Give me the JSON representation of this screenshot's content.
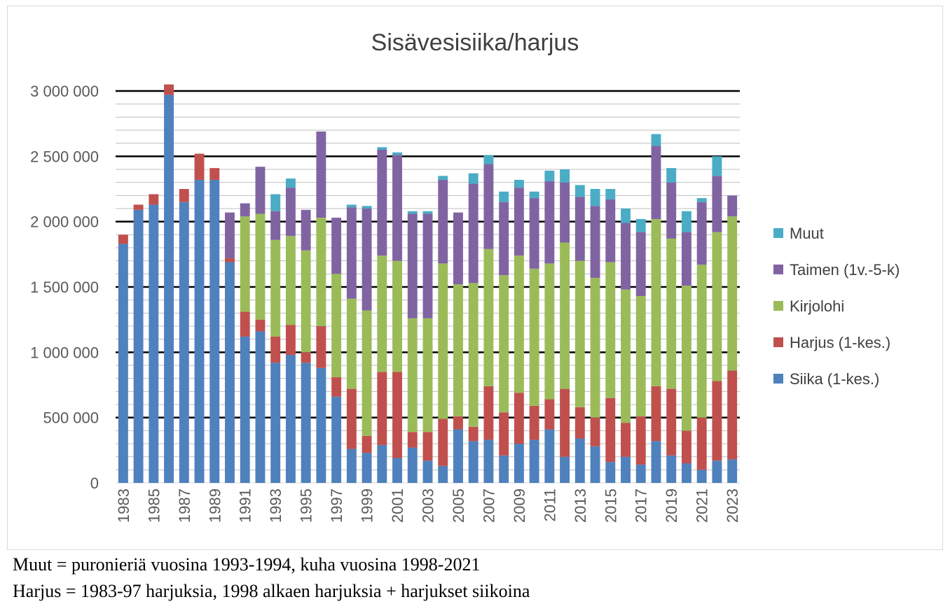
{
  "chart_data": {
    "type": "bar",
    "stacked": true,
    "title": "Sisävesisiika/harjus",
    "xlabel": "",
    "ylabel": "",
    "ylim": [
      0,
      3000000
    ],
    "yticks": [
      0,
      500000,
      1000000,
      1500000,
      2000000,
      2500000,
      3000000
    ],
    "ytick_labels": [
      "0",
      "500 000",
      "1 000 000",
      "1 500 000",
      "2 000 000",
      "2 500 000",
      "3 000 000"
    ],
    "grid": true,
    "legend_position": "right",
    "categories": [
      "1983",
      "1984",
      "1985",
      "1986",
      "1987",
      "1988",
      "1989",
      "1990",
      "1991",
      "1992",
      "1993",
      "1994",
      "1995",
      "1996",
      "1997",
      "1998",
      "1999",
      "2000",
      "2001",
      "2002",
      "2003",
      "2004",
      "2005",
      "2006",
      "2007",
      "2008",
      "2009",
      "2010",
      "2011",
      "2012",
      "2013",
      "2014",
      "2015",
      "2016",
      "2017",
      "2018",
      "2019",
      "2020",
      "2021",
      "2022",
      "2023"
    ],
    "xtick_labels": [
      "1983",
      "",
      "1985",
      "",
      "1987",
      "",
      "1989",
      "",
      "1991",
      "",
      "1993",
      "",
      "1995",
      "",
      "1997",
      "",
      "1999",
      "",
      "2001",
      "",
      "2003",
      "",
      "2005",
      "",
      "2007",
      "",
      "2009",
      "",
      "2011",
      "",
      "2013",
      "",
      "2015",
      "",
      "2017",
      "",
      "2019",
      "",
      "2021",
      "",
      "2023"
    ],
    "series": [
      {
        "name": "Siika (1-kes.)",
        "color": "#4f81bd",
        "values": [
          1830000,
          2090000,
          2130000,
          2970000,
          2150000,
          2320000,
          2320000,
          1690000,
          1120000,
          1160000,
          920000,
          980000,
          920000,
          880000,
          660000,
          260000,
          230000,
          290000,
          190000,
          270000,
          170000,
          130000,
          410000,
          320000,
          330000,
          210000,
          300000,
          330000,
          410000,
          200000,
          340000,
          280000,
          160000,
          200000,
          140000,
          320000,
          210000,
          150000,
          100000,
          170000,
          180000
        ]
      },
      {
        "name": "Harjus (1-kes.)",
        "color": "#c0504d",
        "values": [
          70000,
          40000,
          80000,
          80000,
          100000,
          200000,
          90000,
          30000,
          190000,
          90000,
          200000,
          230000,
          80000,
          320000,
          150000,
          460000,
          130000,
          560000,
          660000,
          120000,
          220000,
          360000,
          100000,
          110000,
          410000,
          330000,
          390000,
          260000,
          230000,
          520000,
          240000,
          220000,
          490000,
          260000,
          370000,
          420000,
          510000,
          250000,
          400000,
          610000,
          680000
        ]
      },
      {
        "name": "Kirjolohi",
        "color": "#9bbb59",
        "values": [
          0,
          0,
          0,
          0,
          0,
          0,
          0,
          0,
          730000,
          810000,
          740000,
          680000,
          780000,
          830000,
          790000,
          690000,
          960000,
          890000,
          850000,
          870000,
          870000,
          1190000,
          1010000,
          1100000,
          1050000,
          1050000,
          1050000,
          1050000,
          1040000,
          1120000,
          1120000,
          1070000,
          1040000,
          1020000,
          920000,
          1280000,
          1150000,
          1110000,
          1170000,
          1140000,
          1180000
        ]
      },
      {
        "name": "Taimen (1v.-5-k)",
        "color": "#8064a2",
        "values": [
          0,
          0,
          0,
          0,
          0,
          0,
          0,
          350000,
          100000,
          360000,
          220000,
          370000,
          310000,
          660000,
          430000,
          700000,
          780000,
          810000,
          810000,
          800000,
          800000,
          640000,
          550000,
          760000,
          650000,
          560000,
          520000,
          540000,
          630000,
          460000,
          490000,
          550000,
          480000,
          510000,
          490000,
          560000,
          430000,
          410000,
          480000,
          430000,
          160000
        ]
      },
      {
        "name": "Muut",
        "color": "#4bacc6",
        "values": [
          0,
          0,
          0,
          0,
          0,
          0,
          0,
          0,
          0,
          0,
          130000,
          70000,
          0,
          0,
          0,
          20000,
          20000,
          20000,
          20000,
          20000,
          20000,
          30000,
          0,
          80000,
          70000,
          80000,
          60000,
          50000,
          80000,
          100000,
          90000,
          130000,
          80000,
          110000,
          100000,
          90000,
          110000,
          160000,
          30000,
          150000,
          0
        ]
      }
    ]
  },
  "notes": {
    "line1": "Muut = puronieriä vuosina 1993-1994, kuha vuosina 1998-2021",
    "line2": "Harjus = 1983-97 harjuksia, 1998 alkaen harjuksia + harjukset siikoina"
  }
}
